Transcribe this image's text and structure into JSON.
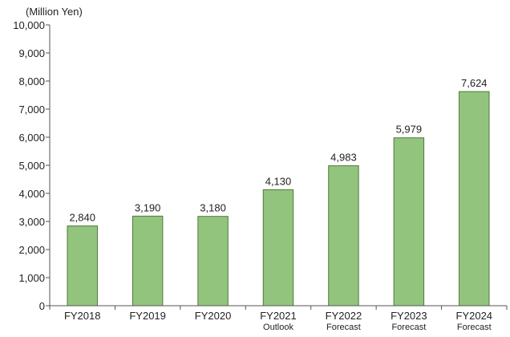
{
  "chart_data": {
    "type": "bar",
    "unit_label": "(Million Yen)",
    "categories": [
      "FY2018",
      "FY2019",
      "FY2020",
      "FY2021",
      "FY2022",
      "FY2023",
      "FY2024"
    ],
    "category_notes": [
      "",
      "",
      "",
      "Outlook",
      "Forecast",
      "Forecast",
      "Forecast"
    ],
    "values": [
      2840,
      3190,
      3180,
      4130,
      4983,
      5979,
      7624
    ],
    "value_labels": [
      "2,840",
      "3,190",
      "3,180",
      "4,130",
      "4,983",
      "5,979",
      "7,624"
    ],
    "ylim": [
      0,
      10000
    ],
    "yticks": [
      0,
      1000,
      2000,
      3000,
      4000,
      5000,
      6000,
      7000,
      8000,
      9000,
      10000
    ],
    "ytick_labels": [
      "0",
      "1,000",
      "2,000",
      "3,000",
      "4,000",
      "5,000",
      "6,000",
      "7,000",
      "8,000",
      "9,000",
      "10,000"
    ],
    "grid": false,
    "legend": "none",
    "colors": {
      "bar_fill": "#93c47d",
      "bar_stroke": "#4e7a3a",
      "axis": "#555555"
    }
  }
}
